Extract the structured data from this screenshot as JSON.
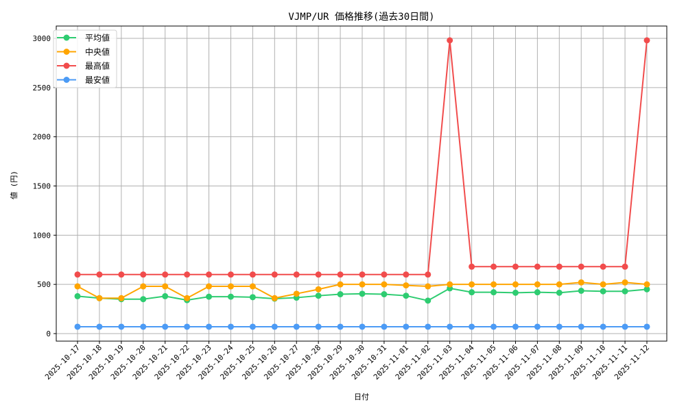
{
  "chart_data": {
    "type": "line",
    "title": "VJMP/UR 価格推移(過去30日間)",
    "xlabel": "日付",
    "ylabel": "値 (円)",
    "ylim": [
      -80,
      3120
    ],
    "yticks": [
      0,
      500,
      1000,
      1500,
      2000,
      2500,
      3000
    ],
    "grid": true,
    "legend_position": "upper left",
    "x": [
      "2025-10-17",
      "2025-10-18",
      "2025-10-19",
      "2025-10-20",
      "2025-10-21",
      "2025-10-22",
      "2025-10-23",
      "2025-10-24",
      "2025-10-25",
      "2025-10-26",
      "2025-10-27",
      "2025-10-28",
      "2025-10-29",
      "2025-10-30",
      "2025-10-31",
      "2025-11-01",
      "2025-11-02",
      "2025-11-03",
      "2025-11-04",
      "2025-11-05",
      "2025-11-06",
      "2025-11-07",
      "2025-11-08",
      "2025-11-09",
      "2025-11-10",
      "2025-11-11",
      "2025-11-12"
    ],
    "series": [
      {
        "name": "平均値",
        "color": "#2ecc71",
        "values": [
          380,
          360,
          350,
          350,
          380,
          340,
          375,
          375,
          370,
          355,
          365,
          385,
          400,
          405,
          400,
          385,
          335,
          460,
          420,
          420,
          415,
          420,
          415,
          435,
          430,
          430,
          450
        ]
      },
      {
        "name": "中央値",
        "color": "#ffa500",
        "values": [
          480,
          360,
          360,
          480,
          480,
          360,
          480,
          480,
          480,
          360,
          405,
          450,
          500,
          500,
          500,
          490,
          480,
          500,
          500,
          500,
          500,
          500,
          500,
          520,
          500,
          520,
          500
        ]
      },
      {
        "name": "最高値",
        "color": "#f14c4c",
        "values": [
          600,
          600,
          600,
          600,
          600,
          600,
          600,
          600,
          600,
          600,
          600,
          600,
          600,
          600,
          600,
          600,
          600,
          2980,
          680,
          680,
          680,
          680,
          680,
          680,
          680,
          680,
          2980
        ]
      },
      {
        "name": "最安値",
        "color": "#4c9bf5",
        "values": [
          70,
          70,
          70,
          70,
          70,
          70,
          70,
          70,
          70,
          70,
          70,
          70,
          70,
          70,
          70,
          70,
          70,
          70,
          70,
          70,
          70,
          70,
          70,
          70,
          70,
          70,
          70
        ]
      }
    ]
  }
}
